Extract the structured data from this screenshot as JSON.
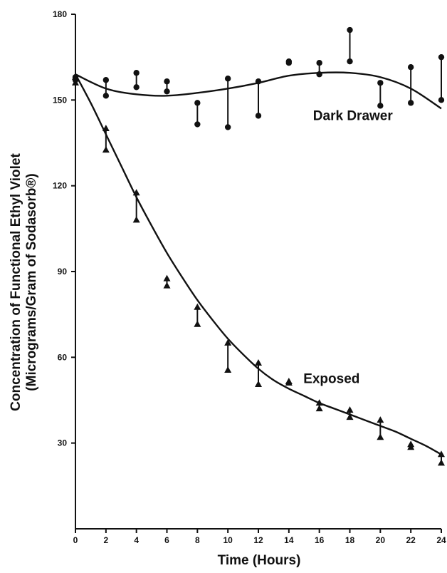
{
  "chart_data": {
    "type": "scatter",
    "title": "",
    "xlabel": "Time (Hours)",
    "ylabel_line1": "Concentration of Functional Ethyl Violet",
    "ylabel_line2": "(Micrograms/Gram of Sodasorb®)",
    "xlim": [
      0,
      24
    ],
    "ylim": [
      0,
      180
    ],
    "x_ticks": [
      "0",
      "2",
      "4",
      "6",
      "8",
      "10",
      "12",
      "14",
      "16",
      "18",
      "20",
      "22",
      "24"
    ],
    "y_ticks": [
      "30",
      "60",
      "90",
      "120",
      "150",
      "180"
    ],
    "grid": false,
    "series": [
      {
        "name": "Dark Drawer",
        "marker": "circle",
        "points": [
          {
            "x": 0,
            "low": 157,
            "high": 158
          },
          {
            "x": 2,
            "low": 151.5,
            "high": 157
          },
          {
            "x": 4,
            "low": 154.5,
            "high": 159.5
          },
          {
            "x": 6,
            "low": 153,
            "high": 156.5
          },
          {
            "x": 8,
            "low": 141.5,
            "high": 149
          },
          {
            "x": 10,
            "low": 140.5,
            "high": 157.5
          },
          {
            "x": 12,
            "low": 144.5,
            "high": 156.5
          },
          {
            "x": 14,
            "low": 163,
            "high": 163.5
          },
          {
            "x": 16,
            "low": 159,
            "high": 163
          },
          {
            "x": 18,
            "low": 163.5,
            "high": 174.5
          },
          {
            "x": 20,
            "low": 148,
            "high": 156
          },
          {
            "x": 22,
            "low": 149,
            "high": 161.5
          },
          {
            "x": 24,
            "low": 150,
            "high": 165
          }
        ],
        "fit": [
          [
            0,
            159
          ],
          [
            2,
            154
          ],
          [
            4,
            152
          ],
          [
            6,
            151.5
          ],
          [
            8,
            152.5
          ],
          [
            10,
            154
          ],
          [
            12,
            156
          ],
          [
            14,
            158.5
          ],
          [
            16,
            159.5
          ],
          [
            18,
            159.5
          ],
          [
            20,
            158
          ],
          [
            22,
            154
          ],
          [
            24,
            147
          ]
        ]
      },
      {
        "name": "Exposed",
        "marker": "triangle",
        "points": [
          {
            "x": 0,
            "low": 156,
            "high": 158
          },
          {
            "x": 2,
            "low": 132.5,
            "high": 140
          },
          {
            "x": 4,
            "low": 108,
            "high": 117.5
          },
          {
            "x": 6,
            "low": 85,
            "high": 87.5
          },
          {
            "x": 8,
            "low": 71.5,
            "high": 77.5
          },
          {
            "x": 10,
            "low": 55.5,
            "high": 65
          },
          {
            "x": 12,
            "low": 50.5,
            "high": 58
          },
          {
            "x": 14,
            "low": 51,
            "high": 51.5
          },
          {
            "x": 16,
            "low": 42,
            "high": 44
          },
          {
            "x": 18,
            "low": 39,
            "high": 41.5
          },
          {
            "x": 20,
            "low": 32,
            "high": 38
          },
          {
            "x": 22,
            "low": 28.5,
            "high": 29.5
          },
          {
            "x": 24,
            "low": 23,
            "high": 26
          }
        ],
        "fit": [
          [
            0,
            159
          ],
          [
            1,
            149
          ],
          [
            2,
            138
          ],
          [
            3,
            127
          ],
          [
            4,
            116
          ],
          [
            5,
            106
          ],
          [
            6,
            96.5
          ],
          [
            7,
            88
          ],
          [
            8,
            80
          ],
          [
            9,
            73
          ],
          [
            10,
            66.5
          ],
          [
            11,
            61
          ],
          [
            12,
            56
          ],
          [
            13,
            52
          ],
          [
            14,
            49
          ],
          [
            15,
            46.5
          ],
          [
            16,
            44
          ],
          [
            17,
            42
          ],
          [
            18,
            40
          ],
          [
            19,
            38
          ],
          [
            20,
            36
          ],
          [
            21,
            34
          ],
          [
            22,
            31.5
          ],
          [
            23,
            29
          ],
          [
            24,
            26
          ]
        ]
      }
    ]
  }
}
